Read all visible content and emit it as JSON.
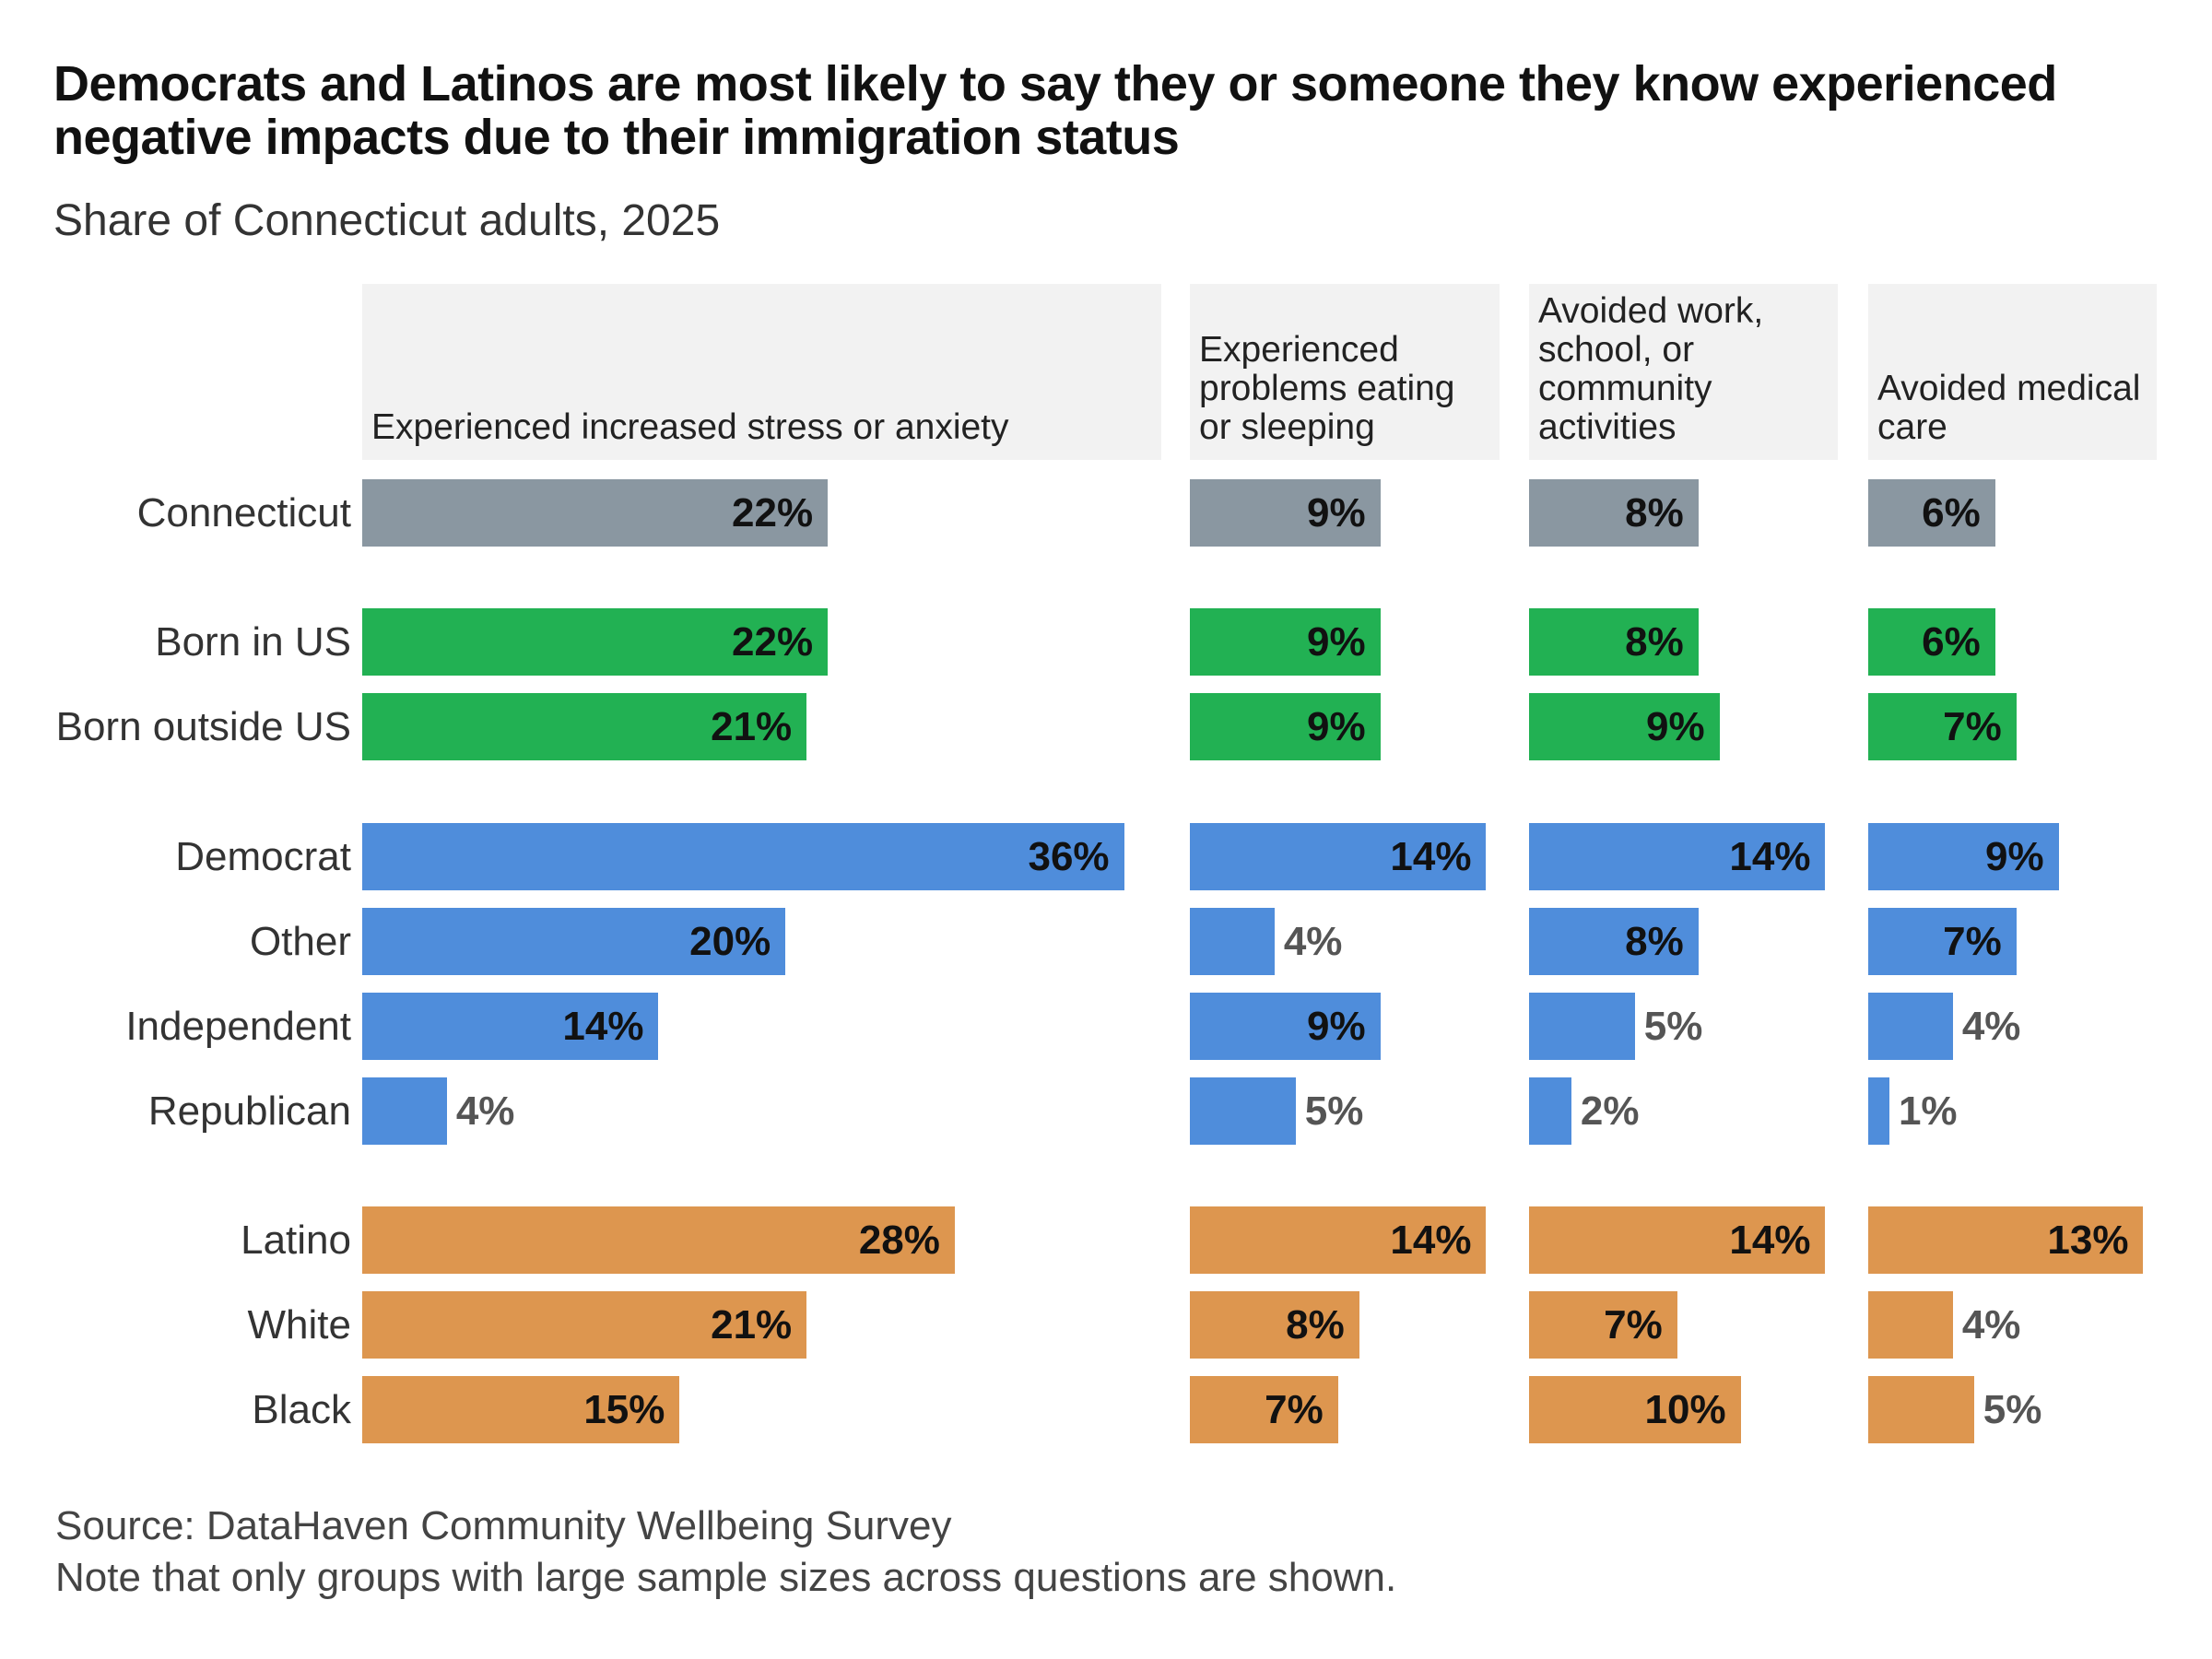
{
  "title": "Democrats and Latinos are most likely to say they or someone they know experienced negative impacts due to their immigration status",
  "subtitle": "Share of Connecticut adults, 2025",
  "source": "Source: DataHaven Community Wellbeing Survey",
  "note": "Note that only groups with large sample sizes across questions are shown.",
  "chart_data": {
    "type": "bar",
    "orientation": "horizontal",
    "unit": "%",
    "panels": [
      "Experienced increased stress or anxiety",
      "Experienced problems eating or sleeping",
      "Avoided work, school, or community activities",
      "Avoided medical care"
    ],
    "categories": [
      "Connecticut",
      "Born in US",
      "Born outside US",
      "Democrat",
      "Other",
      "Independent",
      "Republican",
      "Latino",
      "White",
      "Black"
    ],
    "groups": [
      "total",
      "nativity",
      "nativity",
      "party",
      "party",
      "party",
      "party",
      "race",
      "race",
      "race"
    ],
    "group_colors": {
      "total": "#8a97a1",
      "nativity": "#22b153",
      "party": "#4f8ddb",
      "race": "#dd964f"
    },
    "series": [
      {
        "name": "Experienced increased stress or anxiety",
        "values": [
          22,
          22,
          21,
          36,
          20,
          14,
          4,
          28,
          21,
          15
        ]
      },
      {
        "name": "Experienced problems eating or sleeping",
        "values": [
          9,
          9,
          9,
          14,
          4,
          9,
          5,
          14,
          8,
          7
        ]
      },
      {
        "name": "Avoided work, school, or community activities",
        "values": [
          8,
          8,
          9,
          14,
          8,
          5,
          2,
          14,
          7,
          10
        ]
      },
      {
        "name": "Avoided medical care",
        "values": [
          6,
          6,
          7,
          9,
          7,
          4,
          1,
          13,
          4,
          5
        ]
      }
    ],
    "grid": false,
    "legend": "none"
  }
}
